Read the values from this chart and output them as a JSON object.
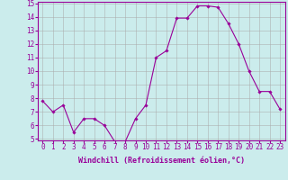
{
  "x": [
    0,
    1,
    2,
    3,
    4,
    5,
    6,
    7,
    8,
    9,
    10,
    11,
    12,
    13,
    14,
    15,
    16,
    17,
    18,
    19,
    20,
    21,
    22,
    23
  ],
  "y": [
    7.8,
    7.0,
    7.5,
    5.5,
    6.5,
    6.5,
    6.0,
    4.8,
    4.8,
    6.5,
    7.5,
    11.0,
    11.5,
    13.9,
    13.9,
    14.8,
    14.8,
    14.7,
    13.5,
    12.0,
    10.0,
    8.5,
    8.5,
    7.2
  ],
  "line_color": "#990099",
  "marker": "D",
  "marker_size": 1.8,
  "bg_color": "#cbecec",
  "grid_color": "#aaaaaa",
  "xlabel": "Windchill (Refroidissement éolien,°C)",
  "xlabel_color": "#990099",
  "xlabel_fontsize": 6.0,
  "tick_label_color": "#990099",
  "tick_fontsize": 5.5,
  "ylim": [
    5,
    15
  ],
  "yticks": [
    5,
    6,
    7,
    8,
    9,
    10,
    11,
    12,
    13,
    14,
    15
  ],
  "xticks": [
    0,
    1,
    2,
    3,
    4,
    5,
    6,
    7,
    8,
    9,
    10,
    11,
    12,
    13,
    14,
    15,
    16,
    17,
    18,
    19,
    20,
    21,
    22,
    23
  ],
  "xtick_labels": [
    "0",
    "1",
    "2",
    "3",
    "4",
    "5",
    "6",
    "7",
    "8",
    "9",
    "10",
    "11",
    "12",
    "13",
    "14",
    "15",
    "16",
    "17",
    "18",
    "19",
    "20",
    "21",
    "22",
    "23"
  ]
}
